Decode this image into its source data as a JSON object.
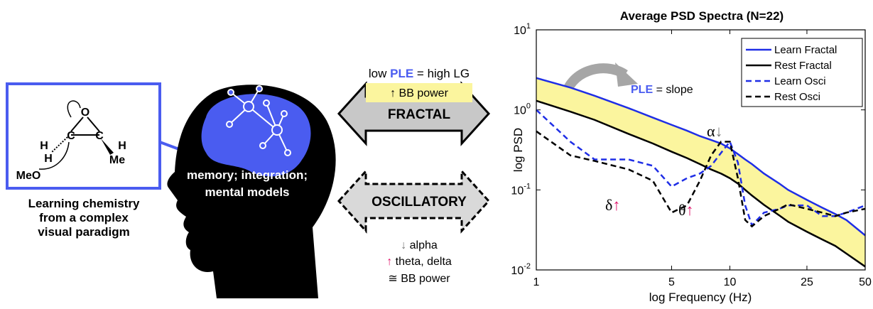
{
  "chart_data": {
    "type": "line",
    "title": "Average PSD Spectra (N=22)",
    "x_label": "log Frequency (Hz)",
    "y_label": "log PSD",
    "x": [
      1,
      1.5,
      2,
      3,
      4,
      5,
      6,
      7,
      8,
      9,
      10,
      11,
      12,
      13,
      15,
      18,
      20,
      25,
      30,
      35,
      40,
      50
    ],
    "series": [
      {
        "name": "Learn Fractal",
        "color": "#1f2ee6",
        "dash": false,
        "values": [
          2.5,
          1.9,
          1.5,
          1.05,
          0.8,
          0.65,
          0.55,
          0.47,
          0.42,
          0.38,
          0.33,
          0.28,
          0.24,
          0.21,
          0.16,
          0.12,
          0.1,
          0.075,
          0.06,
          0.05,
          0.042,
          0.027
        ]
      },
      {
        "name": "Rest Fractal",
        "color": "#000000",
        "dash": false,
        "values": [
          1.3,
          0.95,
          0.75,
          0.5,
          0.38,
          0.3,
          0.25,
          0.21,
          0.18,
          0.16,
          0.14,
          0.12,
          0.1,
          0.085,
          0.065,
          0.048,
          0.04,
          0.03,
          0.024,
          0.02,
          0.016,
          0.011
        ]
      },
      {
        "name": "Learn Osci",
        "color": "#1f2ee6",
        "dash": true,
        "values": [
          1.0,
          0.4,
          0.24,
          0.24,
          0.2,
          0.11,
          0.14,
          0.16,
          0.2,
          0.29,
          0.4,
          0.22,
          0.064,
          0.036,
          0.052,
          0.058,
          0.064,
          0.064,
          0.047,
          0.047,
          0.052,
          0.064
        ]
      },
      {
        "name": "Rest Osci",
        "color": "#000000",
        "dash": true,
        "values": [
          0.54,
          0.27,
          0.23,
          0.18,
          0.13,
          0.052,
          0.064,
          0.13,
          0.27,
          0.4,
          0.4,
          0.14,
          0.042,
          0.035,
          0.047,
          0.058,
          0.066,
          0.058,
          0.052,
          0.047,
          0.052,
          0.058
        ]
      }
    ],
    "band_color": "#fbf59e",
    "xlim": [
      1,
      50
    ],
    "ylim": [
      0.01,
      10
    ],
    "log_x": true,
    "log_y": true,
    "xticks": [
      1,
      5,
      10,
      25,
      50
    ],
    "yticks": [
      {
        "value": 0.01,
        "label": "10",
        "exponent": "-2"
      },
      {
        "value": 0.1,
        "label": "10",
        "exponent": "-1"
      },
      {
        "value": 1,
        "label": "10",
        "exponent": "0"
      },
      {
        "value": 10,
        "label": "10",
        "exponent": "1"
      }
    ],
    "legend": "upper right",
    "slope_note": {
      "highlight": "PLE",
      "rest": "= slope"
    },
    "annotations": [
      {
        "symbol": "α",
        "arrow": "↓"
      },
      {
        "symbol": "δ",
        "arrow": "↑"
      },
      {
        "symbol": "θ",
        "arrow": "↑"
      }
    ]
  },
  "diagram": {
    "molecule": {
      "oxygen": "O",
      "carbons": [
        "C",
        "C"
      ],
      "hydrogens": [
        "H",
        "H",
        "H"
      ],
      "methyl": "Me",
      "methoxide": "MeO"
    },
    "caption": [
      "Learning chemistry",
      "from a complex",
      "visual paradigm"
    ],
    "brain_text": [
      "memory; integration;",
      "mental models"
    ],
    "ple_note": {
      "before": "low",
      "highlight": "PLE",
      "after": "= high LG"
    },
    "fractal_box": {
      "arrow": "↑",
      "text": "BB power"
    },
    "fractal": "FRACTAL",
    "oscillatory": "OSCILLATORY",
    "osc_notes": [
      {
        "arrow": "↓",
        "text": "alpha"
      },
      {
        "arrow": "↑",
        "text": "theta, delta"
      },
      {
        "arrow": "≅",
        "text": "BB power"
      }
    ]
  }
}
